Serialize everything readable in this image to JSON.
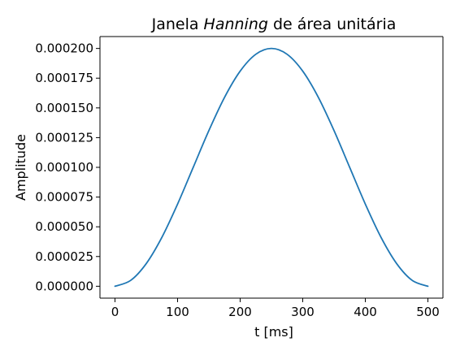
{
  "chart_data": {
    "type": "line",
    "title_parts": {
      "before": "Janela ",
      "italic": "Hanning",
      "after": " de área unitária"
    },
    "xlabel": "t [ms]",
    "ylabel": "Amplitude",
    "xlim": [
      -24,
      524
    ],
    "ylim": [
      -1e-05,
      0.00021
    ],
    "x_ticks": [
      0,
      100,
      200,
      300,
      400,
      500
    ],
    "x_tick_labels": [
      "0",
      "100",
      "200",
      "300",
      "400",
      "500"
    ],
    "y_ticks": [
      0,
      2.5e-05,
      5e-05,
      7.5e-05,
      0.0001,
      0.000125,
      0.00015,
      0.000175,
      0.0002
    ],
    "y_tick_labels": [
      "0.000000",
      "0.000025",
      "0.000050",
      "0.000075",
      "0.000100",
      "0.000125",
      "0.000150",
      "0.000175",
      "0.000200"
    ],
    "grid": false,
    "series": [
      {
        "color": "#1f77b4",
        "x": [
          0,
          25,
          50,
          75,
          100,
          125,
          150,
          175,
          200,
          225,
          250,
          275,
          300,
          325,
          350,
          375,
          400,
          425,
          450,
          475,
          500
        ],
        "y": [
          0,
          4.9e-06,
          1.91e-05,
          4.12e-05,
          6.91e-05,
          0.0001,
          0.0001309,
          0.0001588,
          0.0001809,
          0.0001951,
          0.0002,
          0.0001951,
          0.0001809,
          0.0001588,
          0.0001309,
          0.0001,
          6.91e-05,
          4.12e-05,
          1.91e-05,
          4.9e-06,
          0
        ]
      }
    ]
  }
}
